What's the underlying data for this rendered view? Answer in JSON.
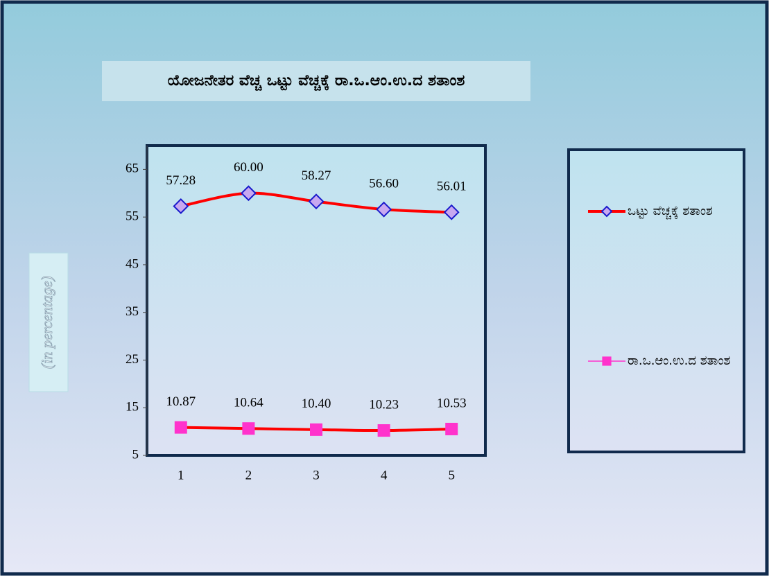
{
  "chart_data": {
    "type": "line",
    "title": "ಯೋಜನೇತರ ವೆಚ್ಚ  ಒಟ್ಟು ವೆಚ್ಚಕ್ಕೆ ರಾ.ಒ.ಆಂ.ಉ.ದ  ಶತಾಂಶ",
    "y_label": "(in percentage)",
    "categories": [
      "1",
      "2",
      "3",
      "4",
      "5"
    ],
    "series": [
      {
        "name": "ಒಟ್ಟು ವೆಚ್ಚಕ್ಕೆ ಶತಾಂಶ",
        "color": "#ff0000",
        "marker": "diamond",
        "marker_color": "#c8a8f0",
        "marker_edge": "#1a1acc",
        "values": [
          57.28,
          60.0,
          58.27,
          56.6,
          56.01
        ],
        "value_labels": [
          "57.28",
          "60.00",
          "58.27",
          "56.60",
          "56.01"
        ]
      },
      {
        "name": "ರಾ.ಒ.ಆಂ.ಉ.ದ ಶತಾಂಶ",
        "color": "#ff0000",
        "legend_color": "#ff33cc",
        "marker": "square",
        "marker_color": "#ff33cc",
        "marker_edge": "#ff33cc",
        "values": [
          10.87,
          10.64,
          10.4,
          10.23,
          10.53
        ],
        "value_labels": [
          "10.87",
          "10.64",
          "10.40",
          "10.23",
          "10.53"
        ]
      }
    ],
    "ylim": [
      5,
      70
    ],
    "yticks": [
      5,
      15,
      25,
      35,
      45,
      55,
      65
    ],
    "grid": false,
    "legend": "right"
  }
}
